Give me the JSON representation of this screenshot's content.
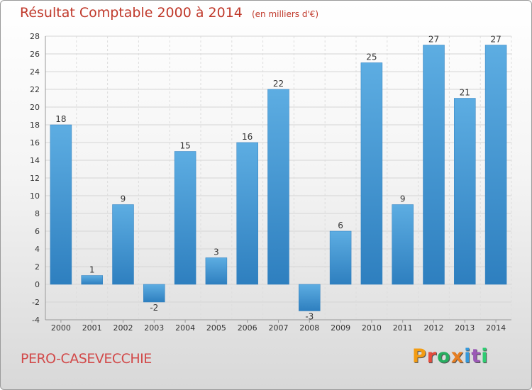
{
  "header": {
    "title": "Résultat Comptable 2000 à 2014",
    "unit": "(en milliers d'€)"
  },
  "footer": {
    "commune": "PERO-CASEVECCHIE",
    "logo": "Proxiti",
    "logo_colors": [
      "#f39c12",
      "#e74c3c",
      "#27ae60",
      "#e67e22",
      "#3498db",
      "#9b59b6",
      "#2ecc71"
    ]
  },
  "chart_data": {
    "type": "bar",
    "categories": [
      "2000",
      "2001",
      "2002",
      "2003",
      "2004",
      "2005",
      "2006",
      "2007",
      "2008",
      "2009",
      "2010",
      "2011",
      "2012",
      "2013",
      "2014"
    ],
    "values": [
      18,
      1,
      9,
      -2,
      15,
      3,
      16,
      22,
      -3,
      6,
      25,
      9,
      27,
      21,
      27
    ],
    "data_labels": [
      "18",
      "1",
      "9",
      "-2",
      "15",
      "3",
      "16",
      "22",
      "-3",
      "6",
      "25",
      "9",
      "27",
      "21",
      "27"
    ],
    "y_ticks": [
      -4,
      -2,
      0,
      2,
      4,
      6,
      8,
      10,
      12,
      14,
      16,
      18,
      20,
      22,
      24,
      26,
      28
    ],
    "ylim": [
      -4,
      28
    ],
    "grid": true,
    "legend": "none",
    "bar_color_light": "#5dade2",
    "bar_color_dark": "#2e7fbf"
  }
}
